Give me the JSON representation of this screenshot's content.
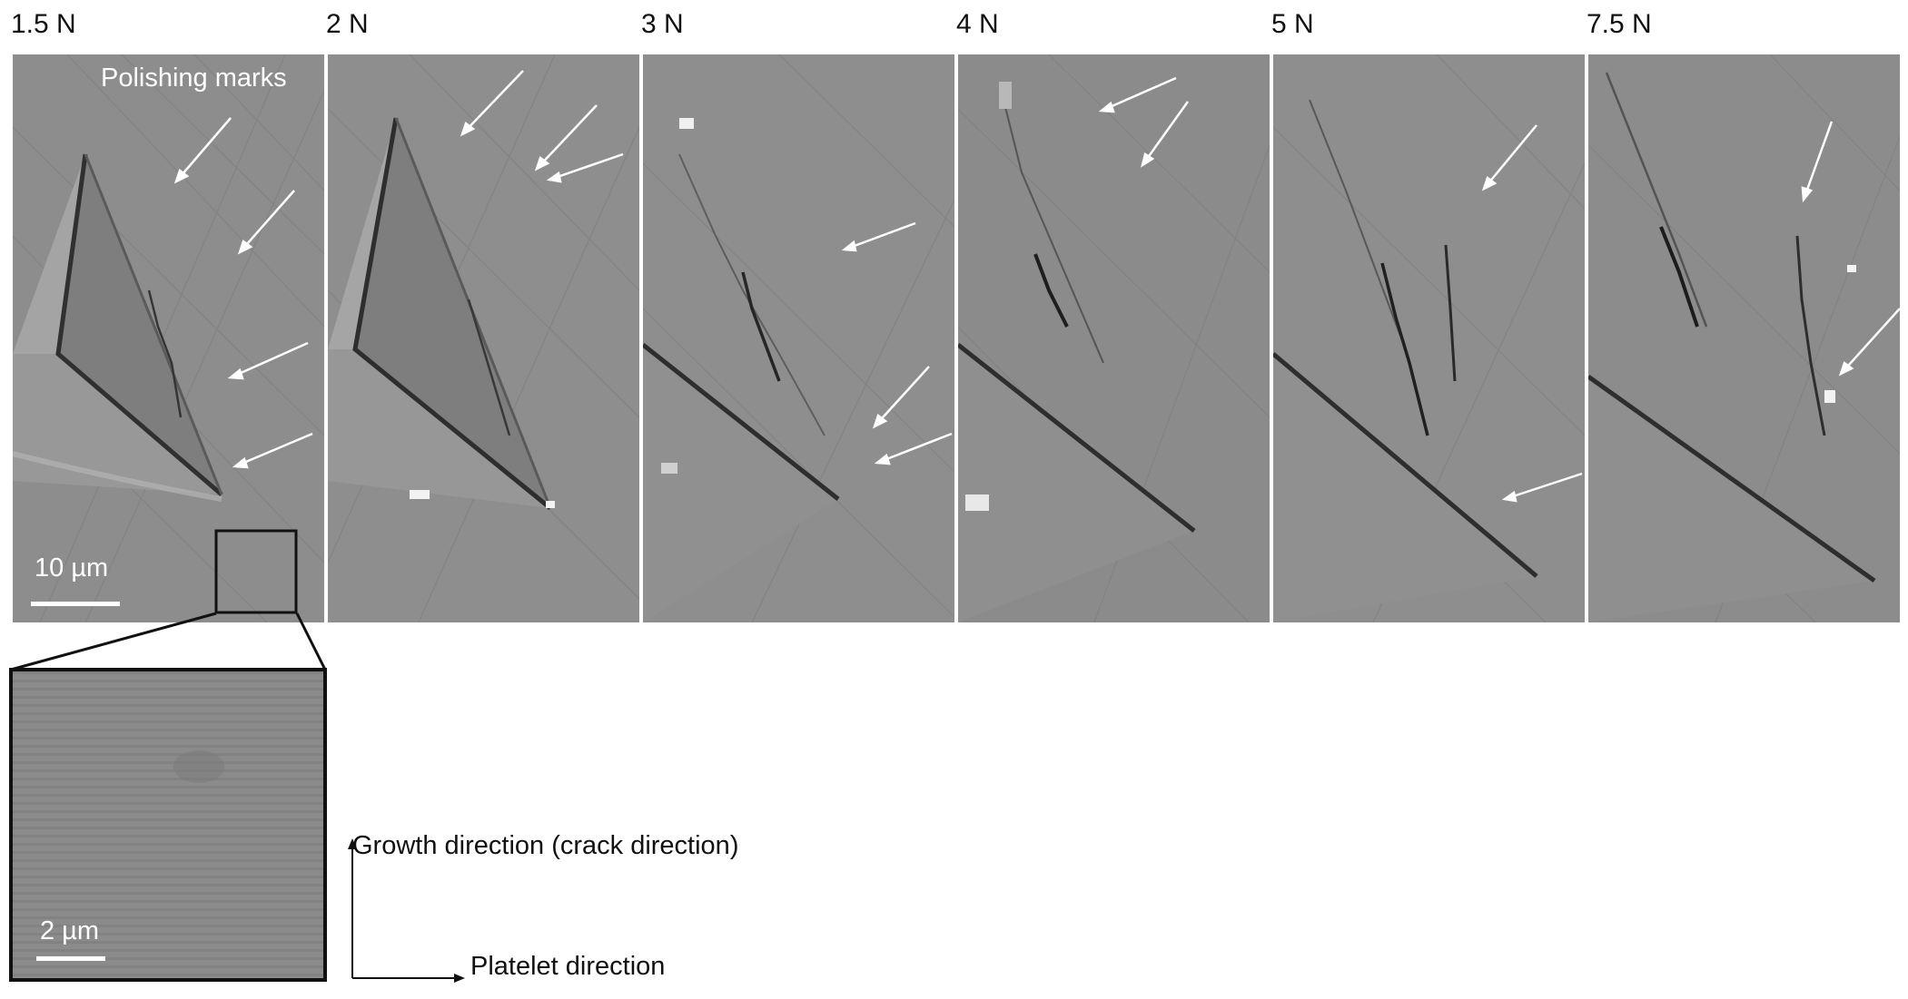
{
  "figure": {
    "panels": [
      {
        "label": "1.5 N"
      },
      {
        "label": "2 N"
      },
      {
        "label": "3 N"
      },
      {
        "label": "4 N"
      },
      {
        "label": "5 N"
      },
      {
        "label": "7.5 N"
      }
    ],
    "annotation_polishing": "Polishing marks",
    "scale_main": "10 µm",
    "scale_inset": "2 µm",
    "axis_vertical": "Growth direction (crack direction)",
    "axis_horizontal": "Platelet direction"
  }
}
